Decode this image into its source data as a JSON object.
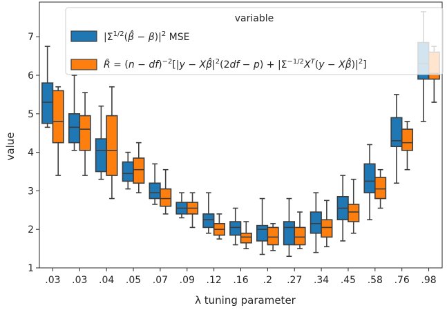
{
  "chart_data": {
    "type": "box",
    "xlabel": "λ tuning parameter",
    "ylabel": "value",
    "ylim": [
      1,
      7.9
    ],
    "yticks": [
      1,
      2,
      3,
      4,
      5,
      6,
      7
    ],
    "categories": [
      ".03",
      ".03",
      ".04",
      ".05",
      ".07",
      ".09",
      ".12",
      ".16",
      ".2",
      ".27",
      ".34",
      ".45",
      ".58",
      ".76",
      ".98"
    ],
    "legend": {
      "title": "variable",
      "placement": "upper center"
    },
    "series": [
      {
        "name": "|Σ^{1/2}(β̂ − β)|² MSE",
        "color": "#1f77b4",
        "boxes": [
          {
            "whislo": 4.65,
            "q1": 4.75,
            "med": 5.3,
            "q3": 5.8,
            "whishi": 6.75
          },
          {
            "whislo": 4.05,
            "q1": 4.25,
            "med": 4.65,
            "q3": 5.0,
            "whishi": 6.0
          },
          {
            "whislo": 3.3,
            "q1": 3.5,
            "med": 4.05,
            "q3": 4.35,
            "whishi": 5.2
          },
          {
            "whislo": 3.05,
            "q1": 3.25,
            "med": 3.45,
            "q3": 3.75,
            "whishi": 4.0
          },
          {
            "whislo": 2.65,
            "q1": 2.8,
            "med": 2.95,
            "q3": 3.2,
            "whishi": 3.7
          },
          {
            "whislo": 2.3,
            "q1": 2.4,
            "med": 2.55,
            "q3": 2.7,
            "whishi": 2.95
          },
          {
            "whislo": 1.9,
            "q1": 2.05,
            "med": 2.25,
            "q3": 2.4,
            "whishi": 2.95
          },
          {
            "whislo": 1.6,
            "q1": 1.85,
            "med": 2.05,
            "q3": 2.2,
            "whishi": 2.55
          },
          {
            "whislo": 1.35,
            "q1": 1.7,
            "med": 2.0,
            "q3": 2.1,
            "whishi": 2.8
          },
          {
            "whislo": 1.3,
            "q1": 1.6,
            "med": 2.05,
            "q3": 2.2,
            "whishi": 2.8
          },
          {
            "whislo": 1.4,
            "q1": 1.9,
            "med": 2.15,
            "q3": 2.45,
            "whishi": 2.95
          },
          {
            "whislo": 1.7,
            "q1": 2.25,
            "med": 2.55,
            "q3": 2.85,
            "whishi": 3.4
          },
          {
            "whislo": 2.25,
            "q1": 2.95,
            "med": 3.25,
            "q3": 3.7,
            "whishi": 4.2
          },
          {
            "whislo": 3.2,
            "q1": 4.15,
            "med": 4.3,
            "q3": 4.9,
            "whishi": 5.5
          },
          {
            "whislo": 4.8,
            "q1": 5.9,
            "med": 6.3,
            "q3": 6.85,
            "whishi": 7.65
          }
        ]
      },
      {
        "name": "R̂ = (n − df)⁻²[|y − Xβ̂|²(2df − p) + |Σ^{−1/2}Xᵀ(y − Xβ̂)|²]",
        "color": "#ff7f0e",
        "boxes": [
          {
            "whislo": 3.4,
            "q1": 4.25,
            "med": 4.8,
            "q3": 5.6,
            "whishi": 5.7
          },
          {
            "whislo": 3.4,
            "q1": 4.05,
            "med": 4.6,
            "q3": 4.95,
            "whishi": 5.55
          },
          {
            "whislo": 2.8,
            "q1": 3.4,
            "med": 4.05,
            "q3": 4.95,
            "whishi": 5.7
          },
          {
            "whislo": 2.95,
            "q1": 3.2,
            "med": 3.55,
            "q3": 3.85,
            "whishi": 4.25
          },
          {
            "whislo": 2.4,
            "q1": 2.6,
            "med": 2.8,
            "q3": 3.05,
            "whishi": 3.55
          },
          {
            "whislo": 2.05,
            "q1": 2.4,
            "med": 2.55,
            "q3": 2.7,
            "whishi": 2.95
          },
          {
            "whislo": 1.75,
            "q1": 1.85,
            "med": 2.0,
            "q3": 2.15,
            "whishi": 2.4
          },
          {
            "whislo": 1.5,
            "q1": 1.65,
            "med": 1.8,
            "q3": 1.9,
            "whishi": 2.2
          },
          {
            "whislo": 1.45,
            "q1": 1.6,
            "med": 1.8,
            "q3": 2.05,
            "whishi": 2.15
          },
          {
            "whislo": 1.5,
            "q1": 1.6,
            "med": 1.8,
            "q3": 2.05,
            "whishi": 2.45
          },
          {
            "whislo": 1.55,
            "q1": 1.8,
            "med": 2.05,
            "q3": 2.25,
            "whishi": 2.75
          },
          {
            "whislo": 1.9,
            "q1": 2.2,
            "med": 2.45,
            "q3": 2.65,
            "whishi": 3.3
          },
          {
            "whislo": 2.55,
            "q1": 2.8,
            "med": 3.05,
            "q3": 3.35,
            "whishi": 3.55
          },
          {
            "whislo": 3.55,
            "q1": 4.05,
            "med": 4.25,
            "q3": 4.6,
            "whishi": 4.8
          },
          {
            "whislo": 5.3,
            "q1": 5.9,
            "med": 6.05,
            "q3": 6.6,
            "whishi": 6.75
          }
        ]
      }
    ]
  }
}
